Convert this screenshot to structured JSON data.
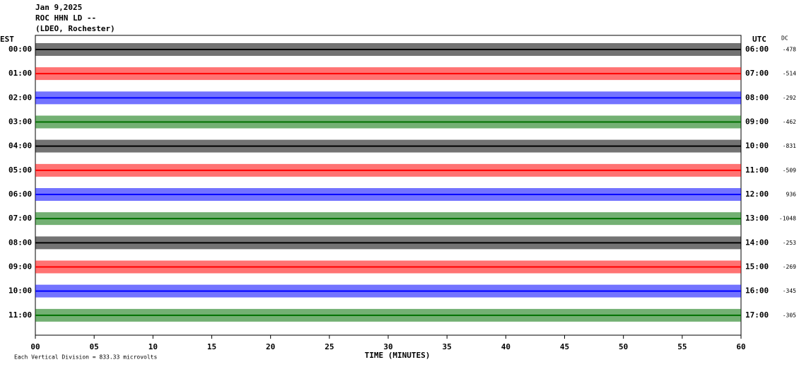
{
  "chart_data": {
    "type": "helicorder",
    "title": "Jan 9,2025",
    "subtitle": "ROC HHN LD --",
    "station": "(LDEO, Rochester)",
    "left_axis_label": "EST",
    "right_axis_label": "UTC",
    "dc_label": "DC",
    "xlabel": "TIME (MINUTES)",
    "footnote": "Each Vertical Division = 833.33 microvolts",
    "xlim": [
      0,
      60
    ],
    "xticks": [
      {
        "value": 0,
        "label": "00"
      },
      {
        "value": 5,
        "label": "05"
      },
      10,
      15,
      20,
      25,
      30,
      35,
      40,
      45,
      50,
      55,
      60
    ],
    "rows": [
      {
        "est": "00:00",
        "utc": "06:00",
        "dc": -478,
        "color": "#000000"
      },
      {
        "est": "01:00",
        "utc": "07:00",
        "dc": -514,
        "color": "#ff0000"
      },
      {
        "est": "02:00",
        "utc": "08:00",
        "dc": -292,
        "color": "#0000ff"
      },
      {
        "est": "03:00",
        "utc": "09:00",
        "dc": -462,
        "color": "#007000"
      },
      {
        "est": "04:00",
        "utc": "10:00",
        "dc": -831,
        "color": "#000000"
      },
      {
        "est": "05:00",
        "utc": "11:00",
        "dc": -509,
        "color": "#ff0000"
      },
      {
        "est": "06:00",
        "utc": "12:00",
        "dc": 936,
        "color": "#0000ff"
      },
      {
        "est": "07:00",
        "utc": "13:00",
        "dc": -1048,
        "color": "#007000"
      },
      {
        "est": "08:00",
        "utc": "14:00",
        "dc": -253,
        "color": "#000000"
      },
      {
        "est": "09:00",
        "utc": "15:00",
        "dc": -269,
        "color": "#ff0000"
      },
      {
        "est": "10:00",
        "utc": "16:00",
        "dc": -345,
        "color": "#0000ff"
      },
      {
        "est": "11:00",
        "utc": "17:00",
        "dc": -305,
        "color": "#007000"
      }
    ]
  }
}
